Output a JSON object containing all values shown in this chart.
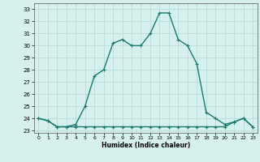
{
  "xlabel": "Humidex (Indice chaleur)",
  "background_color": "#d6f0ee",
  "grid_color": "#b8dcd8",
  "line_color": "#1a7a6e",
  "x_upper": [
    0,
    1,
    2,
    3,
    4,
    5,
    6,
    7,
    8,
    9,
    10,
    11,
    12,
    13,
    14,
    15,
    16,
    17,
    18,
    19,
    20,
    21,
    22,
    23
  ],
  "y_upper": [
    24,
    23.8,
    23.3,
    23.3,
    23.5,
    25,
    27.5,
    28,
    30.2,
    30.5,
    30,
    30,
    31,
    32.7,
    32.7,
    30.5,
    30,
    28.5,
    24.5,
    24,
    23.5,
    23.7,
    24,
    23.3
  ],
  "x_lower": [
    0,
    1,
    2,
    3,
    4,
    5,
    6,
    7,
    8,
    9,
    10,
    11,
    12,
    13,
    14,
    15,
    16,
    17,
    18,
    19,
    20,
    21,
    22,
    23
  ],
  "y_lower": [
    24,
    23.8,
    23.3,
    23.3,
    23.3,
    23.3,
    23.3,
    23.3,
    23.3,
    23.3,
    23.3,
    23.3,
    23.3,
    23.3,
    23.3,
    23.3,
    23.3,
    23.3,
    23.3,
    23.3,
    23.3,
    23.7,
    24,
    23.3
  ],
  "ylim": [
    22.8,
    33.5
  ],
  "xlim": [
    -0.5,
    23.5
  ],
  "yticks": [
    23,
    24,
    25,
    26,
    27,
    28,
    29,
    30,
    31,
    32,
    33
  ],
  "xticks": [
    0,
    1,
    2,
    3,
    4,
    5,
    6,
    7,
    8,
    9,
    10,
    11,
    12,
    13,
    14,
    15,
    16,
    17,
    18,
    19,
    20,
    21,
    22,
    23
  ]
}
